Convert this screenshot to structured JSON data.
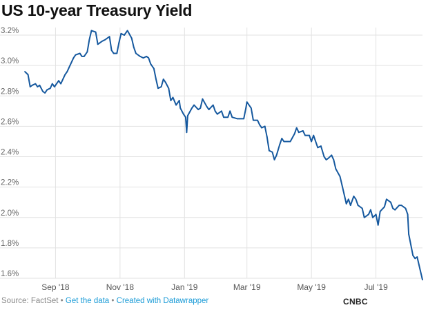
{
  "title": "US 10-year Treasury Yield",
  "footer": {
    "source": "Source: FactSet",
    "separator": "•",
    "get_data": "Get the data",
    "created_with": "Created with Datawrapper"
  },
  "brand": "CNBC",
  "colors": {
    "line": "#15589e",
    "grid": "#e2e2e2",
    "accent_link": "#1a9bd7"
  },
  "chart_data": {
    "type": "line",
    "title": "US 10-year Treasury Yield",
    "xlabel": "",
    "ylabel": "",
    "x_ticks": [
      "Sep '18",
      "Nov '18",
      "Jan '19",
      "Mar '19",
      "May '19",
      "Jul '19"
    ],
    "x_tick_dates": [
      "2018-09-01",
      "2018-11-01",
      "2019-01-01",
      "2019-03-01",
      "2019-05-01",
      "2019-07-01"
    ],
    "y_ticks": [
      "1.6%",
      "1.8%",
      "2.0%",
      "2.2%",
      "2.4%",
      "2.6%",
      "2.8%",
      "3.0%",
      "3.2%"
    ],
    "y_tick_values": [
      1.6,
      1.8,
      2.0,
      2.2,
      2.4,
      2.6,
      2.8,
      3.0,
      3.2
    ],
    "ylim": [
      1.6,
      3.25
    ],
    "xlim": [
      "2018-08-03",
      "2019-08-14"
    ],
    "grid": "vertical at month ticks, horizontal at value ticks",
    "series": [
      {
        "values": [
          [
            "2018-08-03",
            2.96
          ],
          [
            "2018-08-06",
            2.94
          ],
          [
            "2018-08-08",
            2.86
          ],
          [
            "2018-08-10",
            2.87
          ],
          [
            "2018-08-13",
            2.88
          ],
          [
            "2018-08-15",
            2.86
          ],
          [
            "2018-08-17",
            2.87
          ],
          [
            "2018-08-20",
            2.83
          ],
          [
            "2018-08-22",
            2.82
          ],
          [
            "2018-08-24",
            2.84
          ],
          [
            "2018-08-27",
            2.85
          ],
          [
            "2018-08-29",
            2.88
          ],
          [
            "2018-08-31",
            2.86
          ],
          [
            "2018-09-04",
            2.9
          ],
          [
            "2018-09-06",
            2.88
          ],
          [
            "2018-09-10",
            2.94
          ],
          [
            "2018-09-12",
            2.96
          ],
          [
            "2018-09-14",
            2.99
          ],
          [
            "2018-09-18",
            3.05
          ],
          [
            "2018-09-20",
            3.07
          ],
          [
            "2018-09-24",
            3.08
          ],
          [
            "2018-09-26",
            3.06
          ],
          [
            "2018-09-28",
            3.06
          ],
          [
            "2018-10-01",
            3.09
          ],
          [
            "2018-10-03",
            3.17
          ],
          [
            "2018-10-05",
            3.23
          ],
          [
            "2018-10-09",
            3.22
          ],
          [
            "2018-10-11",
            3.14
          ],
          [
            "2018-10-15",
            3.16
          ],
          [
            "2018-10-18",
            3.17
          ],
          [
            "2018-10-22",
            3.19
          ],
          [
            "2018-10-24",
            3.1
          ],
          [
            "2018-10-26",
            3.08
          ],
          [
            "2018-10-29",
            3.08
          ],
          [
            "2018-10-31",
            3.15
          ],
          [
            "2018-11-02",
            3.21
          ],
          [
            "2018-11-05",
            3.2
          ],
          [
            "2018-11-08",
            3.23
          ],
          [
            "2018-11-12",
            3.18
          ],
          [
            "2018-11-14",
            3.12
          ],
          [
            "2018-11-16",
            3.08
          ],
          [
            "2018-11-20",
            3.06
          ],
          [
            "2018-11-23",
            3.05
          ],
          [
            "2018-11-26",
            3.06
          ],
          [
            "2018-11-28",
            3.05
          ],
          [
            "2018-11-30",
            3.01
          ],
          [
            "2018-12-03",
            2.98
          ],
          [
            "2018-12-05",
            2.91
          ],
          [
            "2018-12-07",
            2.85
          ],
          [
            "2018-12-10",
            2.86
          ],
          [
            "2018-12-12",
            2.91
          ],
          [
            "2018-12-14",
            2.89
          ],
          [
            "2018-12-17",
            2.85
          ],
          [
            "2018-12-19",
            2.77
          ],
          [
            "2018-12-21",
            2.79
          ],
          [
            "2018-12-24",
            2.74
          ],
          [
            "2018-12-27",
            2.77
          ],
          [
            "2018-12-28",
            2.72
          ],
          [
            "2018-12-31",
            2.68
          ],
          [
            "2019-01-02",
            2.66
          ],
          [
            "2019-01-03",
            2.56
          ],
          [
            "2019-01-04",
            2.67
          ],
          [
            "2019-01-08",
            2.72
          ],
          [
            "2019-01-10",
            2.74
          ],
          [
            "2019-01-14",
            2.71
          ],
          [
            "2019-01-16",
            2.72
          ],
          [
            "2019-01-18",
            2.78
          ],
          [
            "2019-01-22",
            2.73
          ],
          [
            "2019-01-24",
            2.71
          ],
          [
            "2019-01-28",
            2.74
          ],
          [
            "2019-01-30",
            2.7
          ],
          [
            "2019-02-01",
            2.68
          ],
          [
            "2019-02-05",
            2.7
          ],
          [
            "2019-02-07",
            2.66
          ],
          [
            "2019-02-11",
            2.66
          ],
          [
            "2019-02-13",
            2.7
          ],
          [
            "2019-02-15",
            2.66
          ],
          [
            "2019-02-20",
            2.65
          ],
          [
            "2019-02-22",
            2.65
          ],
          [
            "2019-02-26",
            2.65
          ],
          [
            "2019-02-28",
            2.72
          ],
          [
            "2019-03-01",
            2.76
          ],
          [
            "2019-03-05",
            2.72
          ],
          [
            "2019-03-07",
            2.64
          ],
          [
            "2019-03-11",
            2.64
          ],
          [
            "2019-03-13",
            2.61
          ],
          [
            "2019-03-15",
            2.59
          ],
          [
            "2019-03-18",
            2.6
          ],
          [
            "2019-03-20",
            2.53
          ],
          [
            "2019-03-22",
            2.44
          ],
          [
            "2019-03-25",
            2.43
          ],
          [
            "2019-03-27",
            2.38
          ],
          [
            "2019-03-29",
            2.41
          ],
          [
            "2019-04-01",
            2.48
          ],
          [
            "2019-04-03",
            2.52
          ],
          [
            "2019-04-05",
            2.5
          ],
          [
            "2019-04-09",
            2.5
          ],
          [
            "2019-04-11",
            2.5
          ],
          [
            "2019-04-15",
            2.55
          ],
          [
            "2019-04-17",
            2.59
          ],
          [
            "2019-04-19",
            2.56
          ],
          [
            "2019-04-23",
            2.57
          ],
          [
            "2019-04-25",
            2.54
          ],
          [
            "2019-04-29",
            2.54
          ],
          [
            "2019-05-01",
            2.5
          ],
          [
            "2019-05-03",
            2.54
          ],
          [
            "2019-05-07",
            2.46
          ],
          [
            "2019-05-10",
            2.47
          ],
          [
            "2019-05-13",
            2.4
          ],
          [
            "2019-05-15",
            2.38
          ],
          [
            "2019-05-17",
            2.39
          ],
          [
            "2019-05-20",
            2.41
          ],
          [
            "2019-05-22",
            2.38
          ],
          [
            "2019-05-24",
            2.32
          ],
          [
            "2019-05-28",
            2.27
          ],
          [
            "2019-05-30",
            2.21
          ],
          [
            "2019-06-03",
            2.09
          ],
          [
            "2019-06-05",
            2.12
          ],
          [
            "2019-06-07",
            2.08
          ],
          [
            "2019-06-10",
            2.14
          ],
          [
            "2019-06-12",
            2.12
          ],
          [
            "2019-06-14",
            2.08
          ],
          [
            "2019-06-18",
            2.06
          ],
          [
            "2019-06-20",
            2.0
          ],
          [
            "2019-06-24",
            2.02
          ],
          [
            "2019-06-26",
            2.05
          ],
          [
            "2019-06-28",
            2.0
          ],
          [
            "2019-07-01",
            2.02
          ],
          [
            "2019-07-03",
            1.95
          ],
          [
            "2019-07-05",
            2.04
          ],
          [
            "2019-07-09",
            2.07
          ],
          [
            "2019-07-11",
            2.12
          ],
          [
            "2019-07-15",
            2.1
          ],
          [
            "2019-07-17",
            2.06
          ],
          [
            "2019-07-19",
            2.05
          ],
          [
            "2019-07-23",
            2.08
          ],
          [
            "2019-07-25",
            2.08
          ],
          [
            "2019-07-29",
            2.06
          ],
          [
            "2019-07-31",
            2.02
          ],
          [
            "2019-08-01",
            1.89
          ],
          [
            "2019-08-05",
            1.75
          ],
          [
            "2019-08-07",
            1.73
          ],
          [
            "2019-08-09",
            1.74
          ],
          [
            "2019-08-12",
            1.65
          ],
          [
            "2019-08-14",
            1.59
          ]
        ]
      }
    ]
  }
}
